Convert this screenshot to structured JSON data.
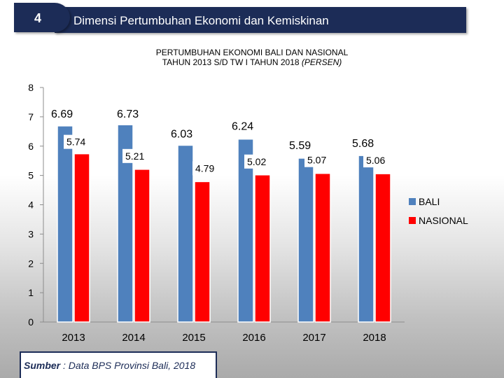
{
  "slide": {
    "number": "4",
    "header_title": "Dimensi  Pertumbuhan Ekonomi dan Kemiskinan",
    "source_label": "Sumber",
    "source_text": " : Data BPS Provinsi Bali, 2018"
  },
  "colors": {
    "header_bg": "#1c2c57",
    "bali": "#4f81bd",
    "nasional": "#ff0000"
  },
  "chart_data": {
    "type": "bar",
    "title_line1": "PERTUMBUHAN EKONOMI BALI DAN NASIONAL",
    "title_line2_prefix": "TAHUN 2013 S/D TW I TAHUN 2018 ",
    "title_line2_italic": "(PERSEN)",
    "categories": [
      "2013",
      "2014",
      "2015",
      "2016",
      "2017",
      "2018"
    ],
    "series": [
      {
        "name": "BALI",
        "color": "#4f81bd",
        "values": [
          6.69,
          6.73,
          6.03,
          6.24,
          5.59,
          5.68
        ],
        "labels": [
          "6.69",
          "6.73",
          "6.03",
          "6.24",
          "5.59",
          "5.68"
        ]
      },
      {
        "name": "NASIONAL",
        "color": "#ff0000",
        "values": [
          5.74,
          5.21,
          4.79,
          5.02,
          5.07,
          5.06
        ],
        "labels": [
          "5.74",
          "5.21",
          "4.79",
          "5.02",
          "5.07",
          "5.06"
        ]
      }
    ],
    "y_ticks": [
      "0",
      "1",
      "2",
      "3",
      "4",
      "5",
      "6",
      "7",
      "8"
    ],
    "ylim": [
      0,
      8
    ],
    "grid": false,
    "legend_position": "right"
  }
}
